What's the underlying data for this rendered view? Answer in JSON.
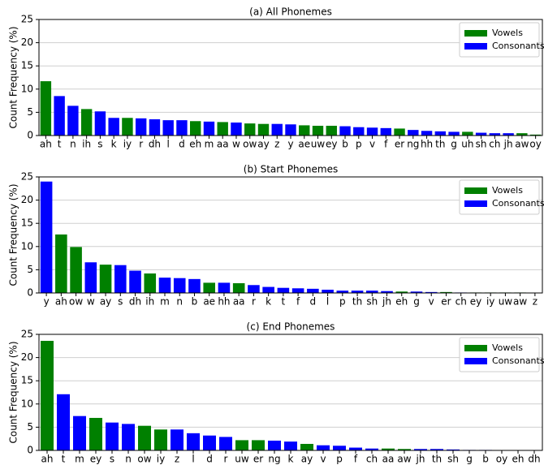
{
  "chart_data": [
    {
      "type": "bar",
      "title": "(a) All Phonemes",
      "y_label": "Count Frequency (%)",
      "categories": [
        "ah",
        "t",
        "n",
        "ih",
        "s",
        "k",
        "iy",
        "r",
        "dh",
        "l",
        "d",
        "eh",
        "m",
        "aa",
        "w",
        "ow",
        "ay",
        "z",
        "y",
        "ae",
        "uw",
        "ey",
        "b",
        "p",
        "v",
        "f",
        "er",
        "ng",
        "hh",
        "th",
        "g",
        "uh",
        "sh",
        "ch",
        "jh",
        "aw",
        "oy"
      ],
      "series": [
        {
          "name": "Vowels",
          "color": "#008000",
          "values": [
            11.7,
            null,
            null,
            5.7,
            null,
            null,
            3.8,
            null,
            null,
            null,
            null,
            3.1,
            null,
            2.9,
            null,
            2.6,
            2.5,
            null,
            null,
            2.2,
            2.1,
            2.1,
            null,
            null,
            null,
            null,
            1.5,
            null,
            null,
            null,
            null,
            0.8,
            null,
            null,
            null,
            0.5,
            0.2
          ]
        },
        {
          "name": "Consonants",
          "color": "#0000ff",
          "values": [
            null,
            8.5,
            6.4,
            null,
            5.2,
            3.8,
            null,
            3.7,
            3.5,
            3.3,
            3.3,
            null,
            3.0,
            null,
            2.8,
            null,
            null,
            2.5,
            2.4,
            null,
            null,
            null,
            2.0,
            1.8,
            1.7,
            1.6,
            null,
            1.2,
            1.0,
            0.9,
            0.8,
            null,
            0.6,
            0.5,
            0.5,
            null,
            null
          ]
        }
      ],
      "ylim": [
        0,
        25
      ],
      "yticks": [
        0,
        5,
        10,
        15,
        20,
        25
      ],
      "grid": true,
      "legend": "upper right"
    },
    {
      "type": "bar",
      "title": "(b) Start Phonemes",
      "y_label": "Count Frequency (%)",
      "categories": [
        "y",
        "ah",
        "ow",
        "w",
        "ay",
        "s",
        "dh",
        "ih",
        "m",
        "n",
        "b",
        "ae",
        "hh",
        "aa",
        "r",
        "k",
        "t",
        "f",
        "d",
        "l",
        "p",
        "th",
        "sh",
        "jh",
        "eh",
        "g",
        "v",
        "er",
        "ch",
        "ey",
        "iy",
        "uw",
        "aw",
        "z"
      ],
      "series": [
        {
          "name": "Vowels",
          "color": "#008000",
          "values": [
            null,
            12.6,
            9.9,
            null,
            6.1,
            null,
            null,
            4.2,
            null,
            null,
            null,
            2.2,
            null,
            2.1,
            null,
            null,
            null,
            null,
            null,
            null,
            null,
            null,
            null,
            null,
            0.3,
            null,
            null,
            0.2,
            null,
            0.1,
            0.1,
            0.1,
            0.1,
            null
          ]
        },
        {
          "name": "Consonants",
          "color": "#0000ff",
          "values": [
            24.0,
            null,
            null,
            6.6,
            null,
            6.0,
            4.8,
            null,
            3.3,
            3.2,
            3.0,
            null,
            2.2,
            null,
            1.7,
            1.3,
            1.1,
            1.0,
            0.9,
            0.7,
            0.5,
            0.5,
            0.5,
            0.4,
            null,
            0.3,
            0.2,
            null,
            0.1,
            null,
            null,
            null,
            null,
            0.05
          ]
        }
      ],
      "ylim": [
        0,
        25
      ],
      "yticks": [
        0,
        5,
        10,
        15,
        20,
        25
      ],
      "grid": true,
      "legend": "upper right"
    },
    {
      "type": "bar",
      "title": "(c) End Phonemes",
      "y_label": "Count Frequency (%)",
      "categories": [
        "ah",
        "t",
        "m",
        "ey",
        "s",
        "n",
        "ow",
        "iy",
        "z",
        "l",
        "d",
        "r",
        "uw",
        "er",
        "ng",
        "k",
        "ay",
        "v",
        "p",
        "f",
        "ch",
        "aa",
        "aw",
        "jh",
        "th",
        "sh",
        "g",
        "b",
        "oy",
        "eh",
        "dh"
      ],
      "series": [
        {
          "name": "Vowels",
          "color": "#008000",
          "values": [
            23.6,
            null,
            null,
            7.0,
            null,
            null,
            5.3,
            4.5,
            null,
            null,
            null,
            null,
            2.2,
            2.2,
            null,
            null,
            1.4,
            null,
            null,
            null,
            null,
            0.4,
            0.3,
            null,
            null,
            null,
            null,
            null,
            0,
            0,
            null
          ]
        },
        {
          "name": "Consonants",
          "color": "#0000ff",
          "values": [
            null,
            12.1,
            7.4,
            null,
            6.0,
            5.7,
            null,
            null,
            4.5,
            3.7,
            3.2,
            2.9,
            null,
            null,
            2.1,
            1.9,
            null,
            1.1,
            1.0,
            0.6,
            0.4,
            null,
            null,
            0.3,
            0.3,
            0.2,
            0.1,
            0.1,
            null,
            null,
            0
          ]
        }
      ],
      "ylim": [
        0,
        25
      ],
      "yticks": [
        0,
        5,
        10,
        15,
        20,
        25
      ],
      "grid": true,
      "legend": "upper right"
    }
  ]
}
